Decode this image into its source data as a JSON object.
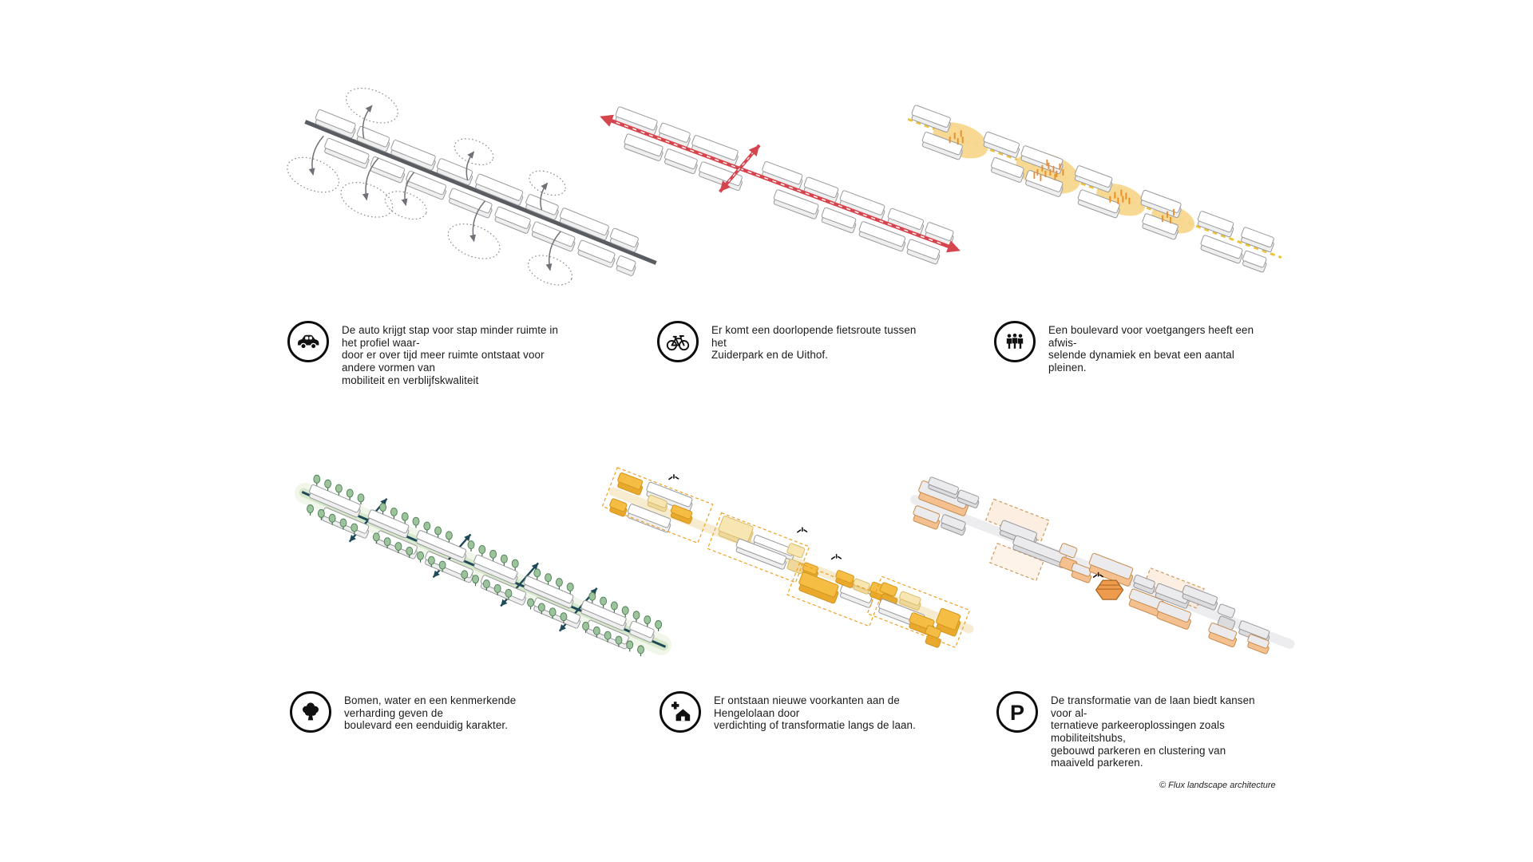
{
  "panels": [
    {
      "id": "cars",
      "icon": "car-icon",
      "caption": "De auto krijgt stap voor stap minder ruimte in het profiel waar-\ndoor er over tijd meer ruimte ontstaat voor andere vormen van\nmobiliteit en verblijfskwaliteit"
    },
    {
      "id": "bike-route",
      "icon": "bicycle-icon",
      "caption": "Er komt een doorlopende fietsroute tussen het\nZuiderpark en de Uithof."
    },
    {
      "id": "pedestrians",
      "icon": "pedestrians-icon",
      "caption": "Een boulevard voor voetgangers heeft een afwis-\nselende dynamiek en bevat een aantal pleinen."
    },
    {
      "id": "trees-water",
      "icon": "tree-icon",
      "caption": "Bomen, water en een kenmerkende verharding geven de\nboulevard een eenduidig karakter."
    },
    {
      "id": "new-frontages",
      "icon": "house-plus-icon",
      "caption": "Er ontstaan nieuwe voorkanten aan de Hengelolaan door\nverdichting of transformatie langs de laan."
    },
    {
      "id": "parking",
      "icon": "parking-icon",
      "caption": "De transformatie van de laan biedt kansen voor al-\nternatieve parkeeroplossingen zoals mobiliteitshubs,\ngebouwd parkeren en clustering van maaiveld parkeren."
    }
  ],
  "footer": {
    "copyright": "© Flux landscape architecture"
  },
  "colors": {
    "ink": "#1a1a1a",
    "road_gray": "#595c60",
    "arrow_gray": "#6e7175",
    "ellipse_gray": "#87898d",
    "building_top": "#ffffff",
    "building_side": "#efeff0",
    "building_stroke": "#97999c",
    "red": "#d6454e",
    "route_yellow": "#eec23b",
    "blob_yellow": "#f7d78d",
    "people_orange": "#ed8d28",
    "teal": "#1d4a58",
    "band_green": "#d7e7ca",
    "band_green_soft": "#e7f0de",
    "tree_fill": "#9cc39b",
    "tree_stroke": "#4f7f57",
    "trunk": "#456a4b",
    "amber": "#f6bd44",
    "amber_stroke": "#d2951d",
    "pale_yellow": "#f8e6b2",
    "pale_stroke": "#d8bc6a",
    "dash_orange": "#ef9f24",
    "band_cream": "#f8ecd0",
    "band_gray": "#ededef",
    "gray_top": "#ebebed",
    "gray_side": "#dcdcdf",
    "gray_stroke": "#96969a",
    "plinth": "#f5c08f",
    "plinth_stroke": "#c68c50",
    "hub": "#ee9b4d",
    "hub_stroke": "#a8651f",
    "peach": "#fbe7d3",
    "peach_stroke": "#cd9a5f"
  }
}
